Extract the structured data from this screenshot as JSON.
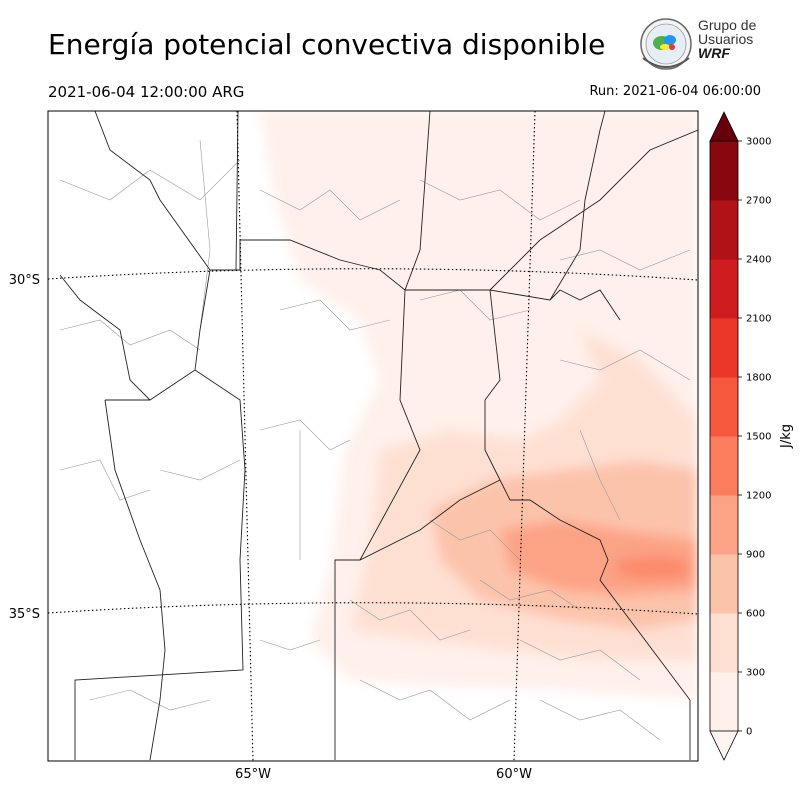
{
  "header": {
    "title": "Energía potencial convectiva disponible",
    "valid_time": "2021-06-04 12:00:00 ARG",
    "run_time": "Run: 2021-06-04 06:00:00"
  },
  "logo": {
    "line1": "Grupo de",
    "line2": "Usuarios",
    "line3": "WRF"
  },
  "map": {
    "lat_labels": [
      "30°S",
      "35°S"
    ],
    "lon_labels": [
      "65°W",
      "60°W"
    ]
  },
  "colorbar": {
    "label": "J/kg",
    "ticks": [
      "0",
      "300",
      "600",
      "900",
      "1200",
      "1500",
      "1800",
      "2100",
      "2400",
      "2700",
      "3000"
    ],
    "colors": [
      "#fff0eb",
      "#fee0d3",
      "#fcc3ab",
      "#fca385",
      "#fb7d5e",
      "#f6583e",
      "#ea3729",
      "#cf1c1e",
      "#b01217",
      "#89070f",
      "#67000d"
    ]
  }
}
